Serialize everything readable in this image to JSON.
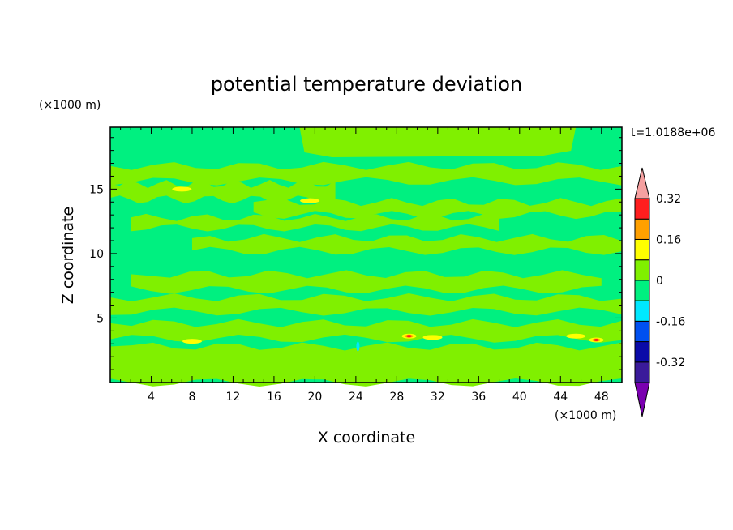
{
  "chart_data": {
    "type": "contour",
    "title": "potential temperature deviation",
    "xlabel": "X coordinate",
    "ylabel": "Z coordinate",
    "x_unit": "(×1000 m)",
    "y_unit": "(×1000 m)",
    "time_label": "t=1.0188e+06",
    "xlim": [
      0,
      50
    ],
    "ylim": [
      0,
      19.8
    ],
    "x_ticks": [
      4,
      8,
      12,
      16,
      20,
      24,
      28,
      32,
      36,
      40,
      44,
      48
    ],
    "x_tick_labels": [
      "4",
      "8",
      "12",
      "16",
      "20",
      "24",
      "28",
      "32",
      "36",
      "40",
      "44",
      "48"
    ],
    "y_ticks": [
      5,
      10,
      15
    ],
    "y_tick_labels": [
      "5",
      "10",
      "15"
    ],
    "colorbar": {
      "levels": [
        -0.32,
        -0.16,
        0,
        0.16,
        0.32
      ],
      "level_labels": [
        "-0.32",
        "-0.16",
        "0",
        "0.16",
        "0.32"
      ],
      "colors": [
        "#7a00b0",
        "#3a1a9a",
        "#0a0aa8",
        "#0050f0",
        "#00e8ff",
        "#00f080",
        "#80f000",
        "#ffff00",
        "#ffa000",
        "#ff1e1e",
        "#f5a0a0"
      ]
    },
    "background_level_color": "#00f080",
    "bands": [
      {
        "y": [
          15.6,
          16.8
        ],
        "x": [
          0,
          50
        ],
        "color": "#80f000"
      },
      {
        "y": [
          14.2,
          15.4
        ],
        "x": [
          0,
          22
        ],
        "color": "#80f000"
      },
      {
        "y": [
          13.0,
          14.0
        ],
        "x": [
          14,
          50
        ],
        "color": "#80f000"
      },
      {
        "y": [
          12.0,
          12.8
        ],
        "x": [
          2,
          38
        ],
        "color": "#80f000"
      },
      {
        "y": [
          10.2,
          11.2
        ],
        "x": [
          8,
          50
        ],
        "color": "#80f000"
      },
      {
        "y": [
          7.2,
          8.4
        ],
        "x": [
          2,
          48
        ],
        "color": "#80f000"
      },
      {
        "y": [
          5.5,
          6.6
        ],
        "x": [
          0,
          50
        ],
        "color": "#80f000"
      },
      {
        "y": [
          3.4,
          4.6
        ],
        "x": [
          0,
          50
        ],
        "color": "#80f000"
      },
      {
        "y": [
          0,
          2.8
        ],
        "x": [
          0,
          50
        ],
        "color": "#80f000"
      }
    ],
    "top_region": {
      "x": [
        18.5,
        45.5
      ],
      "y": [
        17.6,
        19.8
      ],
      "color": "#80f000"
    },
    "hotspots": [
      {
        "x": 7,
        "y": 15.0,
        "level": 0.16
      },
      {
        "x": 19.5,
        "y": 14.1,
        "level": 0.16
      },
      {
        "x": 8,
        "y": 3.2,
        "level": 0.16
      },
      {
        "x": 29.2,
        "y": 3.6,
        "level": 0.32
      },
      {
        "x": 31.5,
        "y": 3.5,
        "level": 0.16
      },
      {
        "x": 45.5,
        "y": 3.6,
        "level": 0.16
      },
      {
        "x": 47.5,
        "y": 3.3,
        "level": 0.32
      },
      {
        "x": 24.2,
        "y": 2.8,
        "level": -0.16
      }
    ]
  }
}
